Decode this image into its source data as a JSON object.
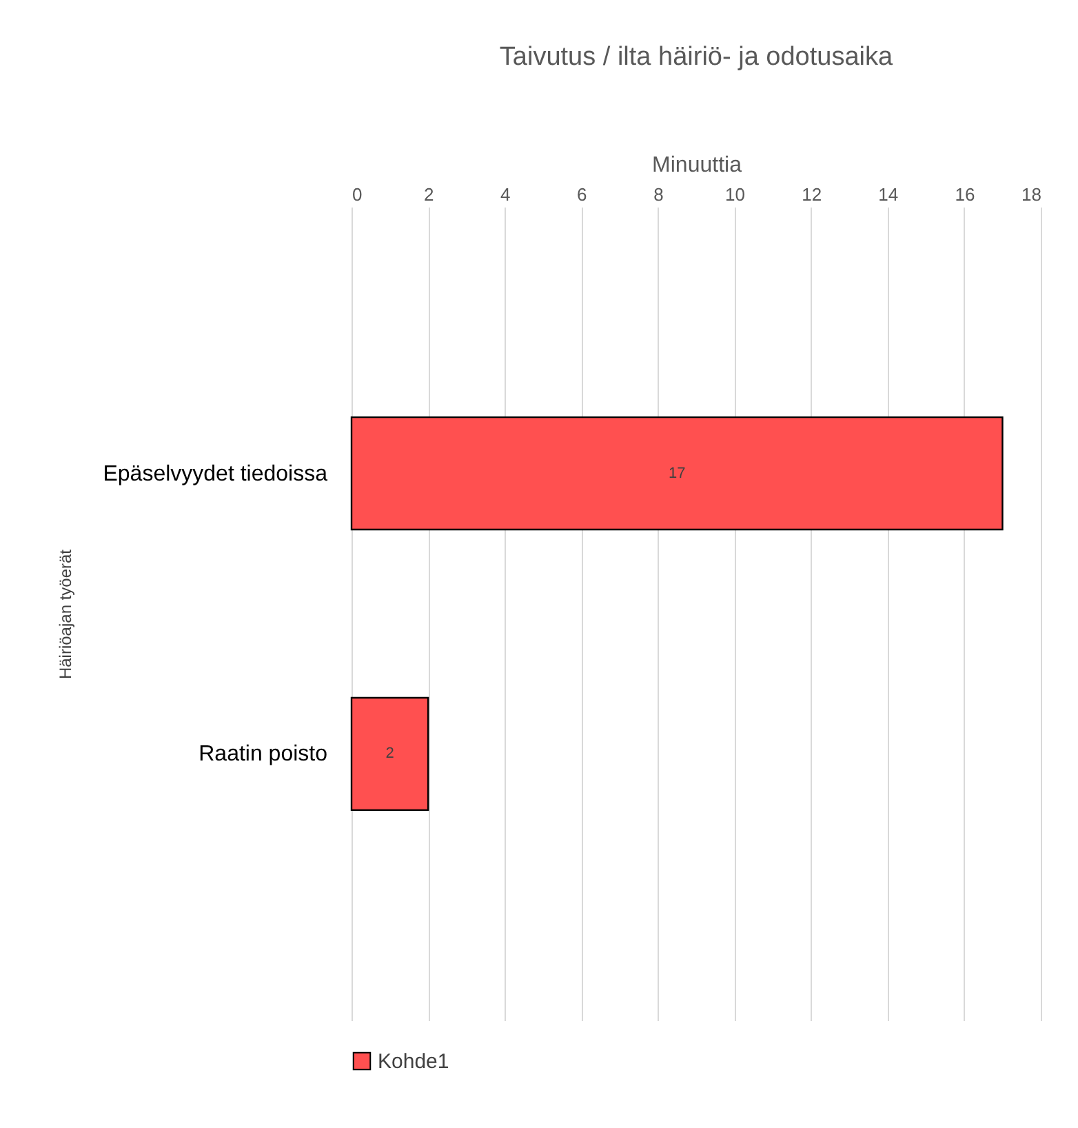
{
  "chart_data": {
    "type": "bar",
    "orientation": "horizontal",
    "title": "Taivutus / ilta häiriö- ja odotusaika",
    "xlabel": "Minuuttia",
    "ylabel": "Häiriöajan työerät",
    "categories": [
      "Epäselvyydet tiedoissa",
      "Raatin poisto"
    ],
    "series": [
      {
        "name": "Kohde1",
        "color": "#ff5050",
        "values": [
          17,
          2
        ]
      }
    ],
    "xlim": [
      0,
      18
    ],
    "xticks": [
      0,
      2,
      4,
      6,
      8,
      10,
      12,
      14,
      16,
      18
    ],
    "grid": "x",
    "legend": "bottom",
    "data_labels": true
  }
}
